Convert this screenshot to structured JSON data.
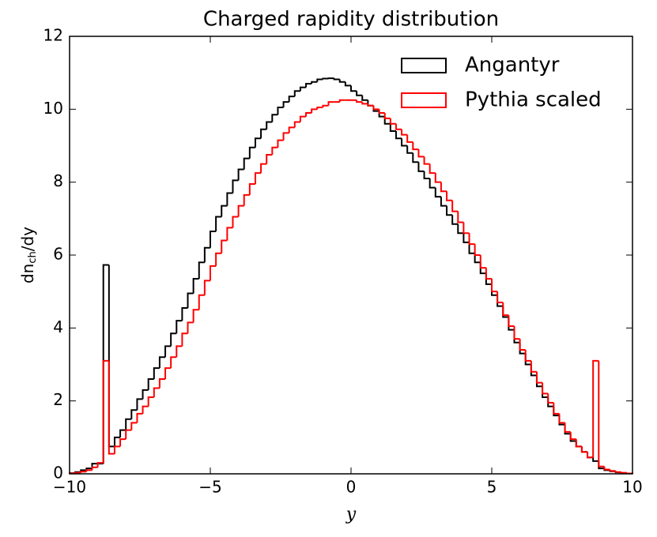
{
  "chart_data": {
    "type": "step-histogram",
    "title": "Charged rapidity distribution",
    "xlabel": "y",
    "ylabel": [
      "dn",
      "ch",
      "/dy"
    ],
    "bins": [
      -10,
      -9.8,
      -9.6,
      -9.4,
      -9.2,
      -9,
      -8.8,
      -8.6,
      -8.4,
      -8.2,
      -8,
      -7.8,
      -7.6,
      -7.4,
      -7.2,
      -7,
      -6.8,
      -6.6,
      -6.4,
      -6.2,
      -6,
      -5.8,
      -5.6,
      -5.4,
      -5.2,
      -5,
      -4.8,
      -4.6,
      -4.4,
      -4.2,
      -4,
      -3.8,
      -3.6,
      -3.4,
      -3.2,
      -3,
      -2.8,
      -2.6,
      -2.4,
      -2.2,
      -2,
      -1.8,
      -1.6,
      -1.4,
      -1.2,
      -1,
      -0.8,
      -0.6,
      -0.4,
      -0.2,
      0,
      0.2,
      0.4,
      0.6,
      0.8,
      1,
      1.2,
      1.4,
      1.6,
      1.8,
      2,
      2.2,
      2.4,
      2.6,
      2.8,
      3,
      3.2,
      3.4,
      3.6,
      3.8,
      4,
      4.2,
      4.4,
      4.6,
      4.8,
      5,
      5.2,
      5.4,
      5.6,
      5.8,
      6,
      6.2,
      6.4,
      6.6,
      6.8,
      7,
      7.2,
      7.4,
      7.6,
      7.8,
      8,
      8.2,
      8.4,
      8.6,
      8.8,
      9,
      9.2,
      9.4,
      9.6,
      9.8,
      10
    ],
    "series": [
      {
        "name": "Angantyr",
        "color": "#000000",
        "values": [
          0.02,
          0.05,
          0.1,
          0.15,
          0.28,
          0.28,
          5.73,
          0.75,
          1.0,
          1.2,
          1.5,
          1.75,
          2.05,
          2.3,
          2.6,
          2.9,
          3.2,
          3.5,
          3.85,
          4.2,
          4.55,
          4.95,
          5.35,
          5.8,
          6.2,
          6.65,
          7.05,
          7.35,
          7.7,
          8.05,
          8.35,
          8.65,
          8.95,
          9.2,
          9.45,
          9.65,
          9.85,
          10.05,
          10.2,
          10.35,
          10.5,
          10.6,
          10.7,
          10.75,
          10.82,
          10.84,
          10.85,
          10.82,
          10.75,
          10.65,
          10.5,
          10.38,
          10.25,
          10.1,
          9.95,
          9.8,
          9.6,
          9.4,
          9.2,
          9.0,
          8.8,
          8.55,
          8.3,
          8.1,
          7.85,
          7.6,
          7.35,
          7.1,
          6.85,
          6.6,
          6.35,
          6.05,
          5.8,
          5.5,
          5.2,
          4.9,
          4.6,
          4.3,
          3.95,
          3.6,
          3.3,
          3.0,
          2.7,
          2.4,
          2.1,
          1.85,
          1.6,
          1.35,
          1.1,
          0.9,
          0.75,
          0.6,
          0.45,
          0.35,
          0.15,
          0.1,
          0.07,
          0.04,
          0.02,
          0.01
        ]
      },
      {
        "name": "Pythia scaled",
        "color": "#ff0000",
        "values": [
          0.01,
          0.03,
          0.06,
          0.1,
          0.18,
          0.3,
          3.1,
          0.55,
          0.75,
          0.95,
          1.2,
          1.4,
          1.65,
          1.85,
          2.1,
          2.35,
          2.6,
          2.9,
          3.2,
          3.5,
          3.85,
          4.15,
          4.5,
          4.9,
          5.3,
          5.7,
          6.05,
          6.4,
          6.75,
          7.05,
          7.35,
          7.65,
          7.95,
          8.25,
          8.5,
          8.75,
          8.95,
          9.15,
          9.35,
          9.5,
          9.65,
          9.8,
          9.9,
          10.0,
          10.05,
          10.1,
          10.2,
          10.2,
          10.25,
          10.25,
          10.25,
          10.2,
          10.15,
          10.1,
          10.0,
          9.9,
          9.75,
          9.6,
          9.45,
          9.3,
          9.1,
          8.9,
          8.7,
          8.5,
          8.25,
          8.0,
          7.75,
          7.5,
          7.2,
          6.9,
          6.6,
          6.3,
          6.0,
          5.65,
          5.35,
          5.0,
          4.7,
          4.35,
          4.05,
          3.7,
          3.4,
          3.1,
          2.8,
          2.5,
          2.2,
          1.95,
          1.65,
          1.4,
          1.15,
          0.95,
          0.75,
          0.6,
          0.45,
          3.1,
          0.2,
          0.12,
          0.08,
          0.05,
          0.03,
          0.01
        ]
      }
    ],
    "xlim": [
      -10,
      10
    ],
    "xticks": [
      {
        "value": -10,
        "label": "−10"
      },
      {
        "value": -5,
        "label": "−5"
      },
      0,
      5,
      10
    ],
    "ylim": [
      0,
      12
    ],
    "yticks": [
      0,
      2,
      4,
      6,
      8,
      10,
      12
    ],
    "legend": "upper right"
  }
}
